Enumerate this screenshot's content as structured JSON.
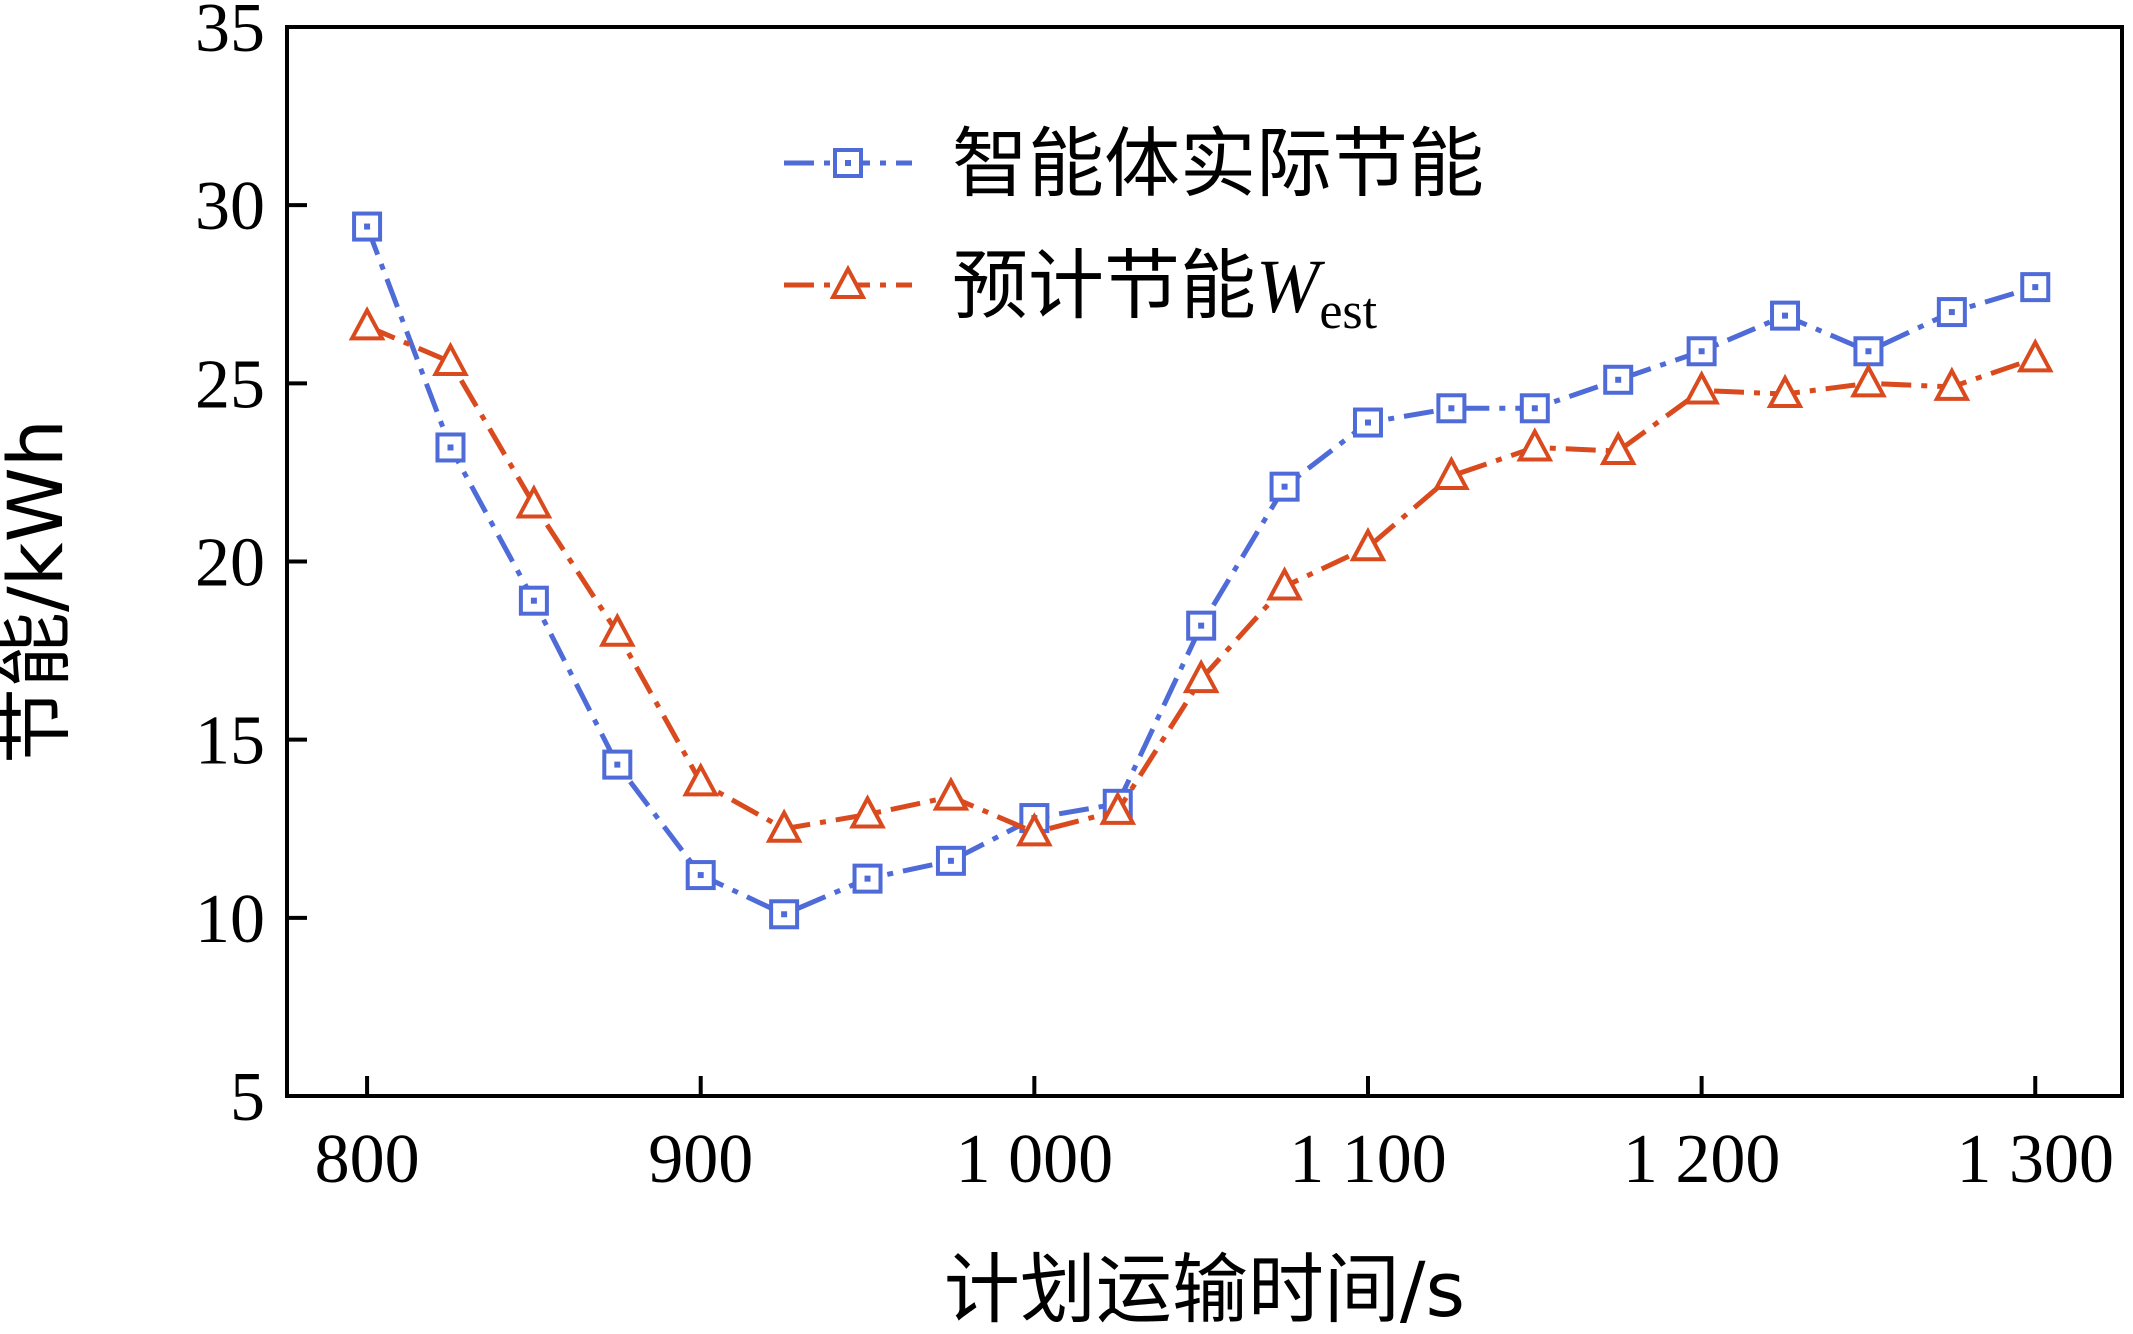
{
  "chart_data": {
    "type": "line",
    "xlabel": "计划运输时间/s",
    "ylabel": "节能/kWh",
    "xlim": [
      776,
      1326
    ],
    "ylim": [
      5,
      35
    ],
    "xticks": [
      800,
      900,
      1000,
      1100,
      1200,
      1300
    ],
    "xtick_labels": [
      "800",
      "900",
      "1 000",
      "1 100",
      "1 200",
      "1 300"
    ],
    "yticks": [
      5,
      10,
      15,
      20,
      25,
      30,
      35
    ],
    "ytick_labels": [
      "5",
      "10",
      "15",
      "20",
      "25",
      "30",
      "35"
    ],
    "grid": false,
    "legend_position": "top-center",
    "x": [
      800,
      825,
      850,
      875,
      900,
      925,
      950,
      975,
      1000,
      1025,
      1050,
      1075,
      1100,
      1125,
      1150,
      1175,
      1200,
      1225,
      1250,
      1275,
      1300
    ],
    "series": [
      {
        "name": "智能体实际节能",
        "color": "#4f6bd8",
        "marker": "square",
        "values": [
          29.4,
          23.2,
          18.9,
          14.3,
          11.2,
          10.1,
          11.1,
          11.6,
          12.8,
          13.2,
          18.2,
          22.1,
          23.9,
          24.3,
          24.3,
          25.1,
          25.9,
          26.9,
          25.9,
          27.0,
          27.7
        ]
      },
      {
        "name_parts": [
          "预计节能",
          "W",
          "est"
        ],
        "color": "#d94b1e",
        "marker": "triangle",
        "values": [
          26.6,
          25.6,
          21.6,
          18.0,
          13.8,
          12.5,
          12.9,
          13.4,
          12.4,
          13.0,
          16.7,
          19.3,
          20.4,
          22.4,
          23.2,
          23.1,
          24.8,
          24.7,
          25.0,
          24.9,
          25.7
        ]
      }
    ]
  }
}
